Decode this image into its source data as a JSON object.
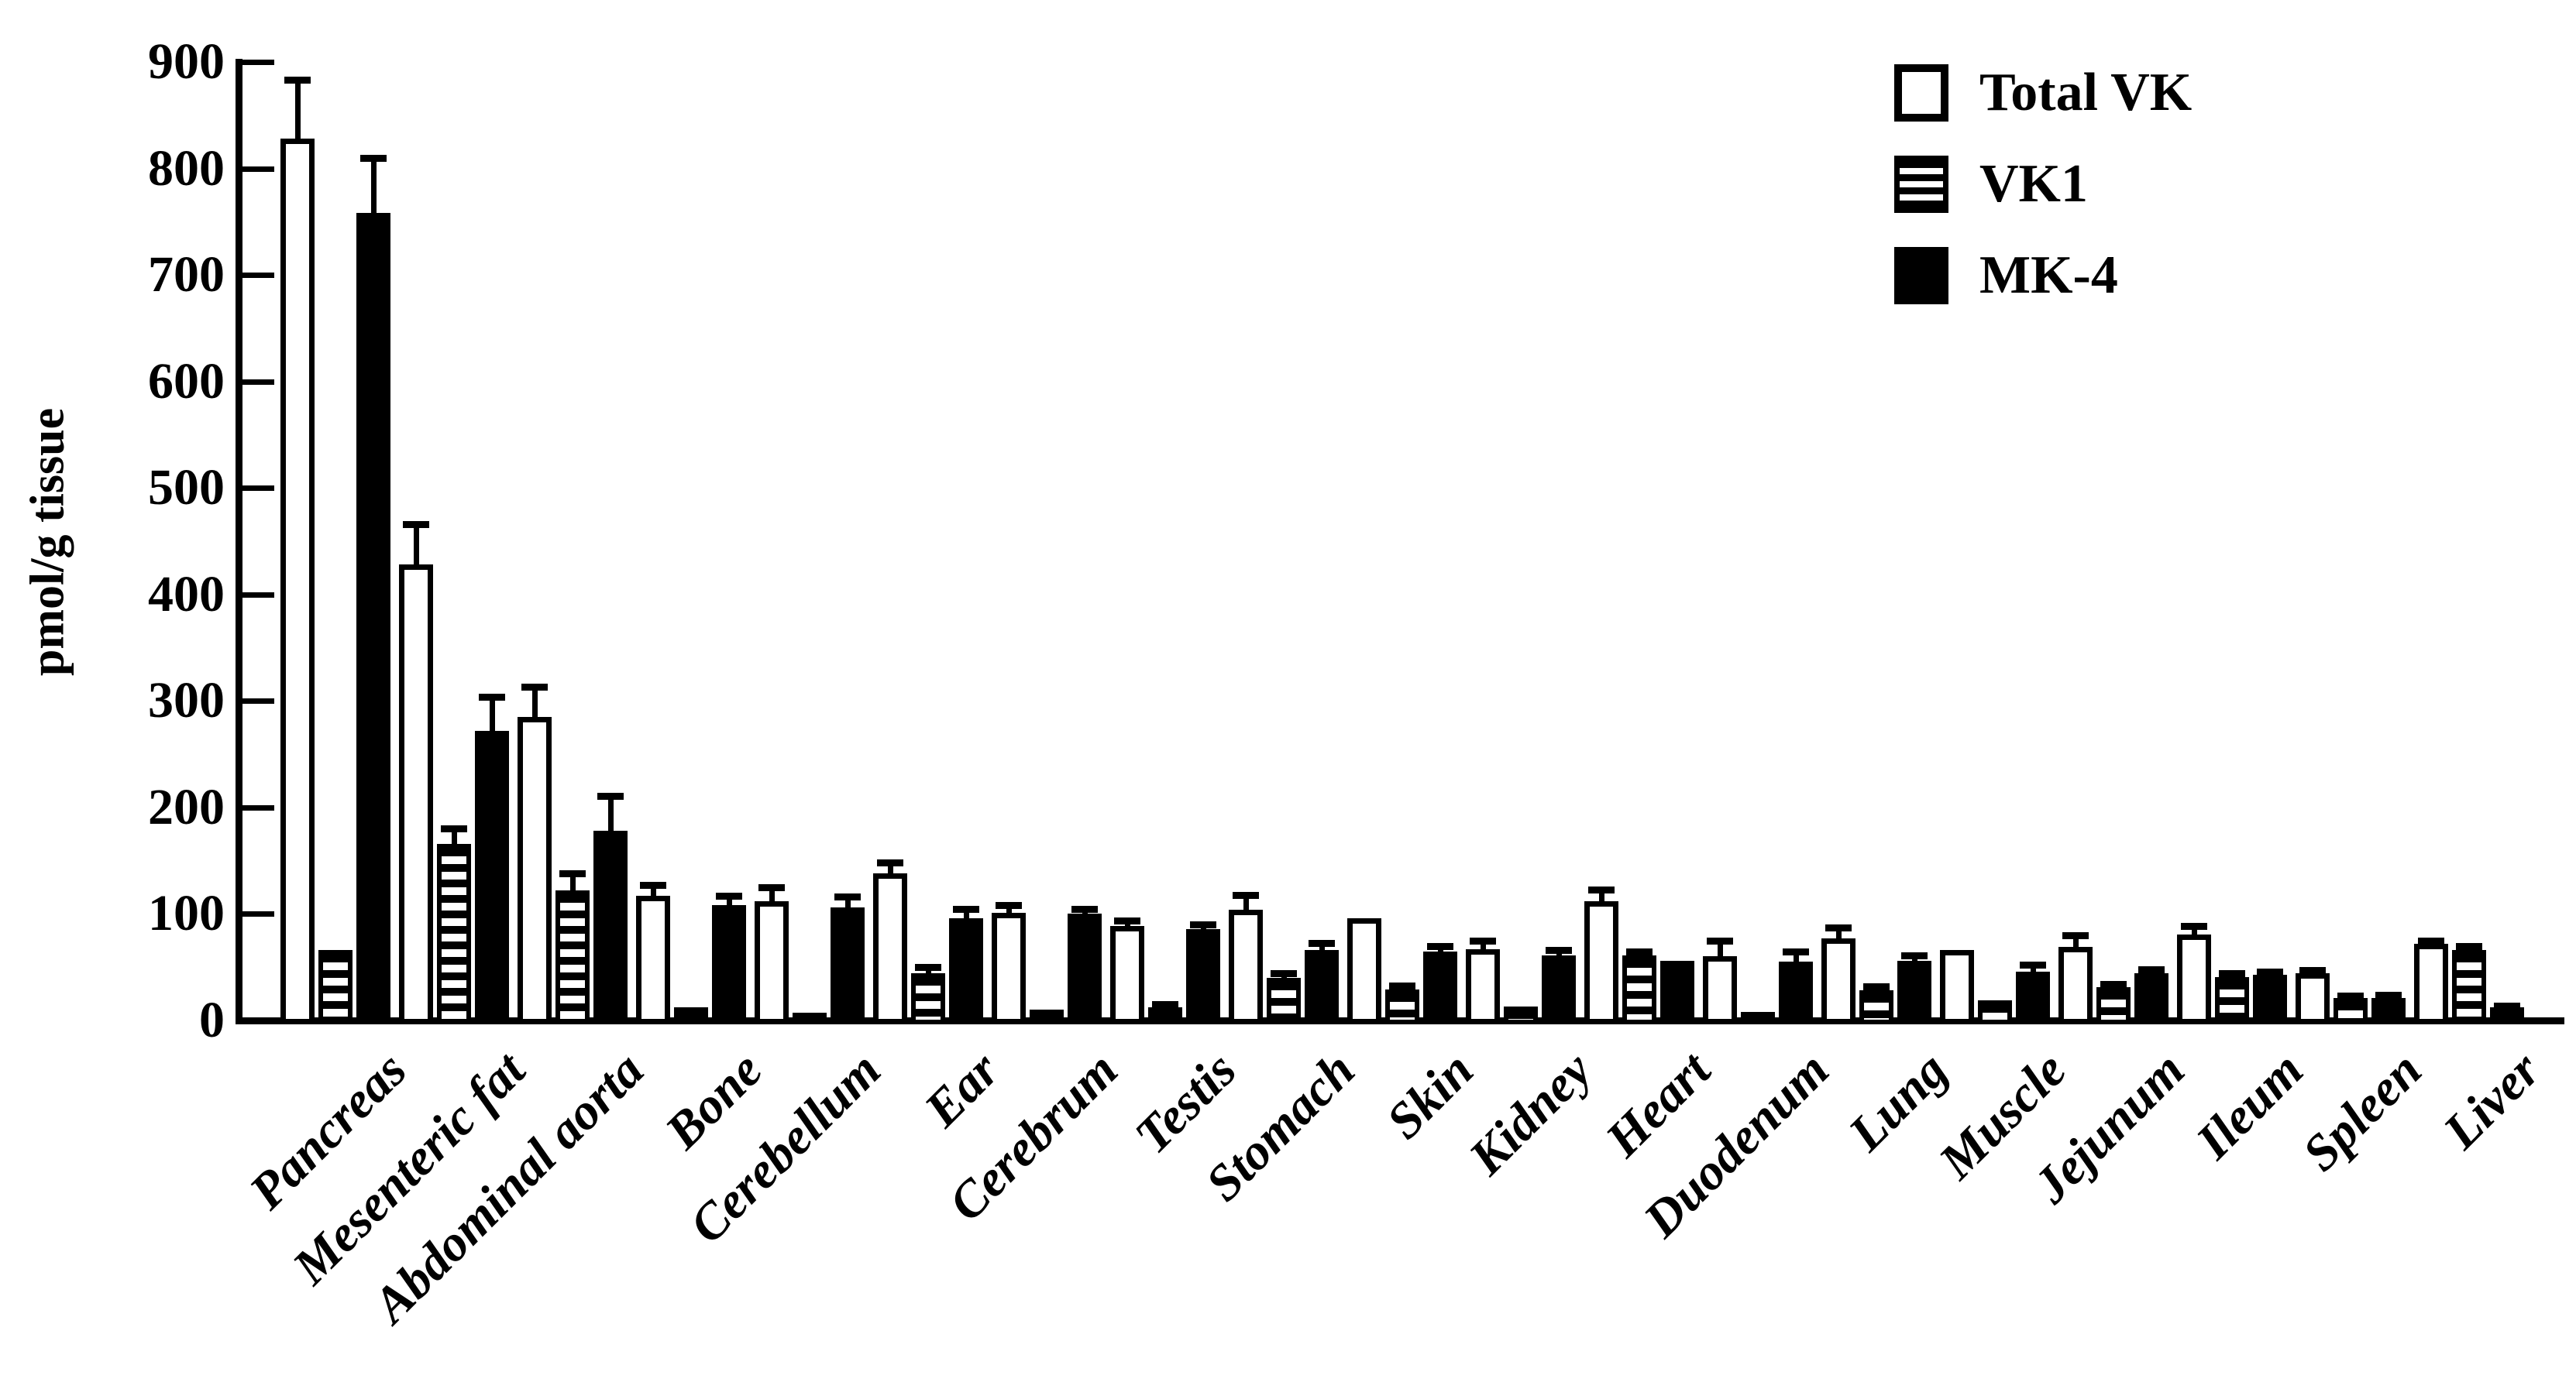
{
  "figure": {
    "background_color": "#ffffff",
    "ink_color": "#000000",
    "y_axis": {
      "label": "pmol/g tissue",
      "tick_labels": [
        "900",
        "800",
        "700",
        "600",
        "500",
        "400",
        "300",
        "200",
        "100",
        "0"
      ]
    },
    "legend": {
      "items": [
        {
          "label": "Total VK",
          "pattern": "open"
        },
        {
          "label": "VK1",
          "pattern": "stripes"
        },
        {
          "label": "MK-4",
          "pattern": "solid"
        }
      ]
    }
  },
  "chart_data": {
    "type": "bar",
    "title": "",
    "xlabel": "",
    "ylabel": "pmol/g tissue",
    "ylim": [
      0,
      900
    ],
    "y_tick_step": 100,
    "grid": false,
    "legend_position": "top-right",
    "error_bars": true,
    "categories": [
      "Pancreas",
      "Mesenteric fat",
      "Abdominal aorta",
      "Bone",
      "Cerebellum",
      "Ear",
      "Cerebrum",
      "Testis",
      "Stomach",
      "Skin",
      "Kidney",
      "Heart",
      "Duodenum",
      "Lung",
      "Muscle",
      "Jejunum",
      "Ileum",
      "Spleen",
      "Liver"
    ],
    "series": [
      {
        "name": "Total VK",
        "fill": "open",
        "values": [
          828,
          428,
          285,
          117,
          112,
          138,
          101,
          89,
          104,
          96,
          67,
          112,
          60,
          77,
          66,
          69,
          81,
          44,
          72
        ],
        "errors": [
          55,
          38,
          28,
          10,
          13,
          10,
          7,
          5,
          14,
          0,
          8,
          11,
          15,
          10,
          0,
          11,
          8,
          3,
          3
        ]
      },
      {
        "name": "VK1",
        "fill": "stripes",
        "values": [
          66,
          166,
          122,
          12,
          7,
          44,
          10,
          12,
          40,
          29,
          13,
          61,
          8,
          28,
          19,
          31,
          41,
          21,
          66
        ],
        "errors": [
          0,
          14,
          16,
          0,
          0,
          6,
          0,
          3,
          4,
          4,
          0,
          4,
          0,
          4,
          0,
          3,
          3,
          2,
          4
        ]
      },
      {
        "name": "MK-4",
        "fill": "solid",
        "values": [
          758,
          272,
          178,
          108,
          106,
          96,
          100,
          86,
          66,
          65,
          61,
          56,
          55,
          56,
          46,
          44,
          43,
          21,
          12
        ],
        "errors": [
          52,
          32,
          33,
          9,
          10,
          9,
          5,
          4,
          7,
          5,
          5,
          0,
          10,
          5,
          6,
          4,
          3,
          3,
          2
        ]
      }
    ]
  }
}
